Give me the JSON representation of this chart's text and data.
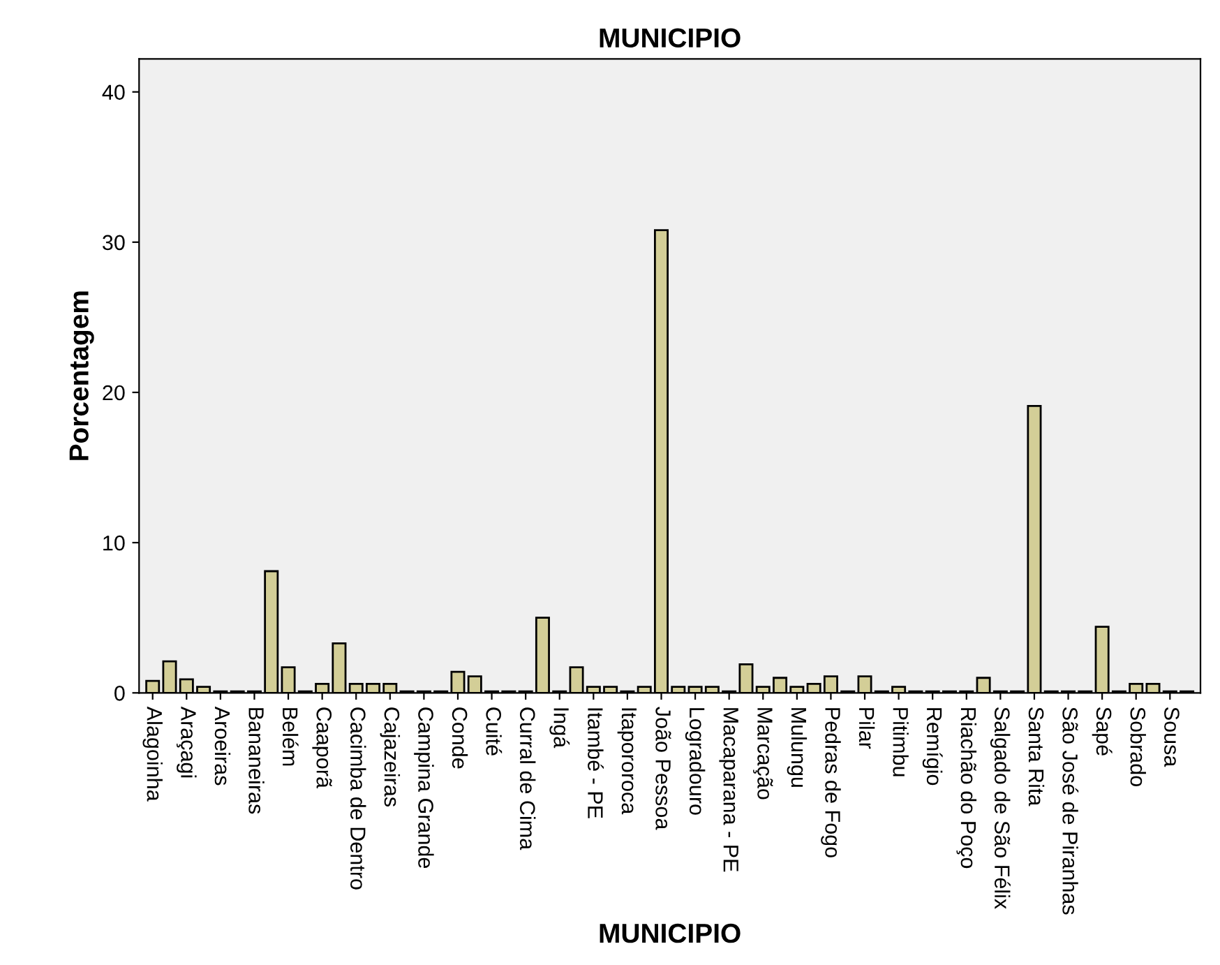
{
  "chart_data": {
    "type": "bar",
    "title": "MUNICIPIO",
    "xlabel": "MUNICIPIO",
    "ylabel": "Porcentagem",
    "categories": [
      "Alagoinha",
      null,
      "Araçagi",
      null,
      "Aroeiras",
      null,
      "Bananeiras",
      null,
      "Belém",
      null,
      "Caaporã",
      null,
      "Cacimba de Dentro",
      null,
      "Cajazeiras",
      null,
      "Campina Grande",
      null,
      "Conde",
      null,
      "Cuité",
      null,
      "Curral de Cima",
      null,
      "Ingá",
      null,
      "Itambé - PE",
      null,
      "Itapororoca",
      null,
      "João Pessoa",
      null,
      "Logradouro",
      null,
      "Macaparana - PE",
      null,
      "Marcação",
      null,
      "Mulungu",
      null,
      "Pedras de Fogo",
      null,
      "Pilar",
      null,
      "Pitimbu",
      null,
      "Remígio",
      null,
      "Riachão do Poço",
      null,
      "Salgado de São Félix",
      null,
      "Santa Rita",
      null,
      "São José de Piranhas",
      null,
      "Sapé",
      null,
      "Sobrado",
      null,
      "Sousa",
      null
    ],
    "values": [
      0.8,
      2.1,
      0.9,
      0.4,
      0.1,
      0.1,
      0.1,
      8.1,
      1.7,
      0.1,
      0.6,
      3.3,
      0.6,
      0.6,
      0.6,
      0.1,
      0.1,
      0.1,
      1.4,
      1.1,
      0.1,
      0.1,
      0.1,
      5.0,
      0.1,
      1.7,
      0.4,
      0.4,
      0.1,
      0.4,
      30.8,
      0.4,
      0.4,
      0.4,
      0.1,
      1.9,
      0.4,
      1.0,
      0.4,
      0.6,
      1.1,
      0.1,
      1.1,
      0.1,
      0.4,
      0.1,
      0.1,
      0.1,
      0.1,
      1.0,
      0.1,
      0.1,
      19.1,
      0.1,
      0.1,
      0.1,
      4.4,
      0.1,
      0.6,
      0.6,
      0.1,
      0.1
    ],
    "color": "#d3ce97",
    "ylim": [
      0,
      42.2
    ],
    "yticks": [
      0,
      10,
      20,
      30,
      40
    ],
    "grid": false
  }
}
